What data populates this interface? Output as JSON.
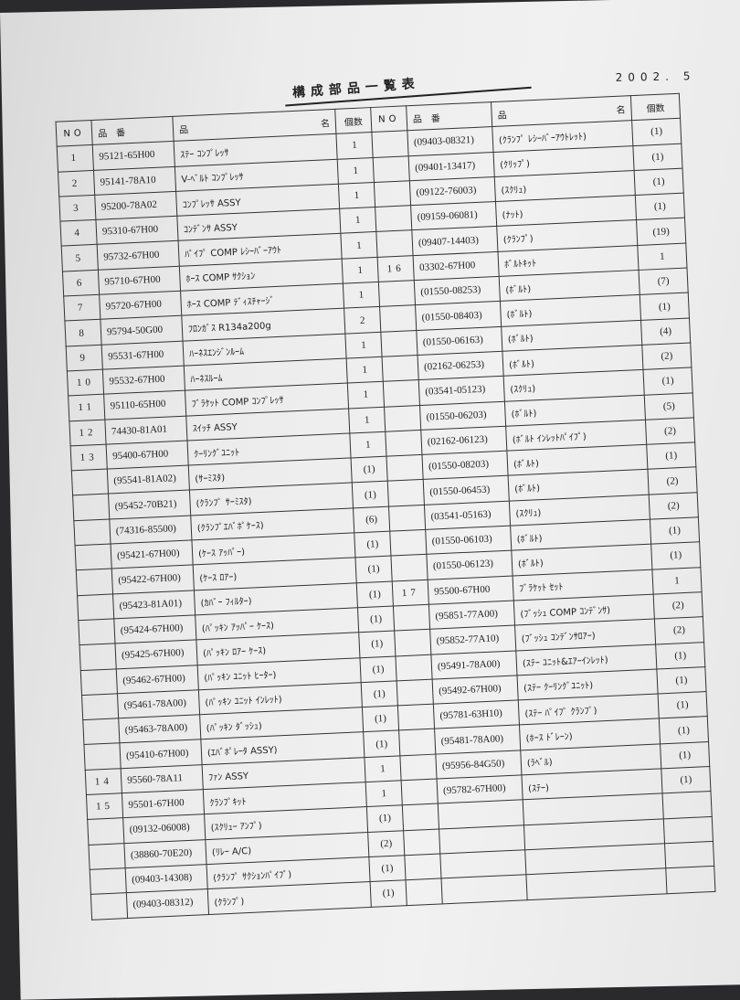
{
  "title": "構成部品一覧表",
  "date": "2002. 5",
  "header": {
    "no": "NO",
    "part_no": "品　番",
    "name_1": "品",
    "name_2": "名",
    "qty": "個数"
  },
  "left_rows": [
    [
      "1",
      "95121-65H00",
      "ｽﾃｰ ｺﾝﾌﾟﾚｯｻ",
      "1"
    ],
    [
      "2",
      "95141-78A10",
      "V-ﾍﾞﾙﾄ ｺﾝﾌﾟﾚｯｻ",
      "1"
    ],
    [
      "3",
      "95200-78A02",
      "ｺﾝﾌﾟﾚｯｻ ASSY",
      "1"
    ],
    [
      "4",
      "95310-67H00",
      "ｺﾝﾃﾞﾝｻ ASSY",
      "1"
    ],
    [
      "5",
      "95732-67H00",
      "ﾊﾟｲﾌﾟ COMP ﾚｼｰﾊﾞｰｱｳﾄ",
      "1"
    ],
    [
      "6",
      "95710-67H00",
      "ﾎｰｽ COMP ｻｸｼｮﾝ",
      "1"
    ],
    [
      "7",
      "95720-67H00",
      "ﾎｰｽ COMP ﾃﾞｨｽﾁｬｰｼﾞ",
      "1"
    ],
    [
      "8",
      "95794-50G00",
      "ﾌﾛﾝｶﾞｽ R134a200g",
      "2"
    ],
    [
      "9",
      "95531-67H00",
      "ﾊｰﾈｽｴﾝｼﾞﾝﾙｰﾑ",
      "1"
    ],
    [
      "10",
      "95532-67H00",
      "ﾊｰﾈｽﾙｰﾑ",
      "1"
    ],
    [
      "11",
      "95110-65H00",
      "ﾌﾞﾗｹｯﾄ COMP ｺﾝﾌﾟﾚｯｻ",
      "1"
    ],
    [
      "12",
      "74430-81A01",
      "ｽｲｯﾁ ASSY",
      "1"
    ],
    [
      "13",
      "95400-67H00",
      "ｸｰﾘﾝｸﾞﾕﾆｯﾄ",
      "1"
    ],
    [
      "",
      "(95541-81A02)",
      "(ｻｰﾐｽﾀ)",
      "(1)"
    ],
    [
      "",
      "(95452-70B21)",
      "(ｸﾗﾝﾌﾟ ｻｰﾐｽﾀ)",
      "(1)"
    ],
    [
      "",
      "(74316-85500)",
      "(ｸﾗﾝﾌﾟｴﾊﾞﾎﾟｹｰｽ)",
      "(6)"
    ],
    [
      "",
      "(95421-67H00)",
      "(ｹｰｽ ｱｯﾊﾟｰ)",
      "(1)"
    ],
    [
      "",
      "(95422-67H00)",
      "(ｹｰｽ ﾛｱｰ)",
      "(1)"
    ],
    [
      "",
      "(95423-81A01)",
      "(ｶﾊﾞｰ ﾌｨﾙﾀｰ)",
      "(1)"
    ],
    [
      "",
      "(95424-67H00)",
      "(ﾊﾟｯｷﾝ ｱｯﾊﾟｰ ｹｰｽ)",
      "(1)"
    ],
    [
      "",
      "(95425-67H00)",
      "(ﾊﾟｯｷﾝ ﾛｱｰ ｹｰｽ)",
      "(1)"
    ],
    [
      "",
      "(95462-67H00)",
      "(ﾊﾟｯｷﾝ ﾕﾆｯﾄ ﾋｰﾀｰ)",
      "(1)"
    ],
    [
      "",
      "(95461-78A00)",
      "(ﾊﾟｯｷﾝ ﾕﾆｯﾄ ｲﾝﾚｯﾄ)",
      "(1)"
    ],
    [
      "",
      "(95463-78A00)",
      "(ﾊﾟｯｷﾝ ﾀﾞｯｼｭ)",
      "(1)"
    ],
    [
      "",
      "(95410-67H00)",
      "(ｴﾊﾞﾎﾟﾚｰﾀ ASSY)",
      "(1)"
    ],
    [
      "14",
      "95560-78A11",
      "ﾌｧﾝ ASSY",
      "1"
    ],
    [
      "15",
      "95501-67H00",
      "ｸﾗﾝﾌﾟｷｯﾄ",
      "1"
    ],
    [
      "",
      "(09132-06008)",
      "(ｽｸﾘｭｰ ｱﾝﾌﾟ)",
      "(1)"
    ],
    [
      "",
      "(38860-70E20)",
      "(ﾘﾚｰ A/C)",
      "(2)"
    ],
    [
      "",
      "(09403-14308)",
      "(ｸﾗﾝﾌﾟ ｻｸｼｮﾝﾊﾟｲﾌﾟ)",
      "(1)"
    ],
    [
      "",
      "(09403-08312)",
      "(ｸﾗﾝﾌﾟ)",
      "(1)"
    ]
  ],
  "right_rows": [
    [
      "",
      "(09403-08321)",
      "(ｸﾗﾝﾌﾟ ﾚｼｰﾊﾞｰｱｳﾄﾚｯﾄ)",
      "(1)"
    ],
    [
      "",
      "(09401-13417)",
      "(ｸﾘｯﾌﾟ)",
      "(1)"
    ],
    [
      "",
      "(09122-76003)",
      "(ｽｸﾘｭ)",
      "(1)"
    ],
    [
      "",
      "(09159-06081)",
      "(ﾅｯﾄ)",
      "(1)"
    ],
    [
      "",
      "(09407-14403)",
      "(ｸﾗﾝﾌﾟ)",
      "(19)"
    ],
    [
      "16",
      "03302-67H00",
      "ﾎﾞﾙﾄｷｯﾄ",
      "1"
    ],
    [
      "",
      "(01550-08253)",
      "(ﾎﾞﾙﾄ)",
      "(7)"
    ],
    [
      "",
      "(01550-08403)",
      "(ﾎﾞﾙﾄ)",
      "(1)"
    ],
    [
      "",
      "(01550-06163)",
      "(ﾎﾞﾙﾄ)",
      "(4)"
    ],
    [
      "",
      "(02162-06253)",
      "(ﾎﾞﾙﾄ)",
      "(2)"
    ],
    [
      "",
      "(03541-05123)",
      "(ｽｸﾘｭ)",
      "(1)"
    ],
    [
      "",
      "(01550-06203)",
      "(ﾎﾞﾙﾄ)",
      "(5)"
    ],
    [
      "",
      "(02162-06123)",
      "(ﾎﾞﾙﾄ ｲﾝﾚｯﾄﾊﾟｲﾌﾟ)",
      "(2)"
    ],
    [
      "",
      "(01550-08203)",
      "(ﾎﾞﾙﾄ)",
      "(1)"
    ],
    [
      "",
      "(01550-06453)",
      "(ﾎﾞﾙﾄ)",
      "(2)"
    ],
    [
      "",
      "(03541-05163)",
      "(ｽｸﾘｭ)",
      "(2)"
    ],
    [
      "",
      "(01550-06103)",
      "(ﾎﾞﾙﾄ)",
      "(1)"
    ],
    [
      "",
      "(01550-06123)",
      "(ﾎﾞﾙﾄ)",
      "(1)"
    ],
    [
      "17",
      "95500-67H00",
      "ﾌﾞﾗｹｯﾄ ｾｯﾄ",
      "1"
    ],
    [
      "",
      "(95851-77A00)",
      "(ﾌﾞｯｼｭ COMP ｺﾝﾃﾞﾝｻ)",
      "(2)"
    ],
    [
      "",
      "(95852-77A10)",
      "(ﾌﾞｯｼｭ ｺﾝﾃﾞﾝｻﾛｱｰ)",
      "(2)"
    ],
    [
      "",
      "(95491-78A00)",
      "(ｽﾃｰ ﾕﾆｯﾄ&ｴｱｰｲﾝﾚｯﾄ)",
      "(1)"
    ],
    [
      "",
      "(95492-67H00)",
      "(ｽﾃｰ ｸｰﾘﾝｸﾞﾕﾆｯﾄ)",
      "(1)"
    ],
    [
      "",
      "(95781-63H10)",
      "(ｽﾃｰ ﾊﾟｲﾌﾟ ｸﾗﾝﾌﾟ)",
      "(1)"
    ],
    [
      "",
      "(95481-78A00)",
      "(ﾎｰｽ ﾄﾞﾚｰﾝ)",
      "(1)"
    ],
    [
      "",
      "(95956-84G50)",
      "(ﾗﾍﾞﾙ)",
      "(1)"
    ],
    [
      "",
      "(95782-67H00)",
      "(ｽﾃｰ)",
      "(1)"
    ],
    [
      "",
      "",
      "",
      ""
    ],
    [
      "",
      "",
      "",
      ""
    ],
    [
      "",
      "",
      "",
      ""
    ],
    [
      "",
      "",
      "",
      ""
    ]
  ]
}
